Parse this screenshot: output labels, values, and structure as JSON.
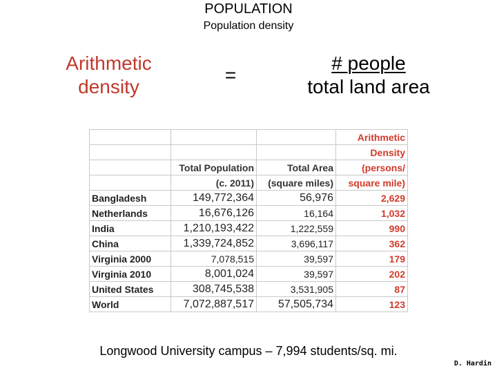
{
  "slide": {
    "title": "POPULATION",
    "subtitle": "Population density"
  },
  "formula": {
    "term_line1": "Arithmetic",
    "term_line2": "density",
    "equals": "=",
    "numerator": "# people",
    "denominator": "total land area"
  },
  "table": {
    "header_rows": [
      [
        "",
        "",
        "",
        "Arithmetic"
      ],
      [
        "",
        "",
        "",
        "Density"
      ],
      [
        "",
        "Total Population",
        "Total Area",
        "(persons/"
      ],
      [
        "",
        "(c. 2011)",
        "(square miles)",
        "square mile)"
      ]
    ],
    "rows": [
      {
        "place": "Bangladesh",
        "population": "149,772,364",
        "area": "56,976",
        "density": "2,629"
      },
      {
        "place": "Netherlands",
        "population": "16,676,126",
        "area": "16,164",
        "density": "1,032"
      },
      {
        "place": "India",
        "population": "1,210,193,422",
        "area": "1,222,559",
        "density": "990"
      },
      {
        "place": "China",
        "population": "1,339,724,852",
        "area": "3,696,117",
        "density": "362"
      },
      {
        "place": "Virginia 2000",
        "population": "7,078,515",
        "area": "39,597",
        "density": "179"
      },
      {
        "place": "Virginia 2010",
        "population": "8,001,024",
        "area": "39,597",
        "density": "202"
      },
      {
        "place": "United States",
        "population": "308,745,538",
        "area": "3,531,905",
        "density": "87"
      },
      {
        "place": "World",
        "population": "7,072,887,517",
        "area": "57,505,734",
        "density": "123"
      }
    ]
  },
  "footer": "Longwood University campus – 7,994 students/sq. mi.",
  "credit": "D. Hardin",
  "colors": {
    "accent_red": "#d23a2a",
    "term_red": "#c0392b"
  }
}
